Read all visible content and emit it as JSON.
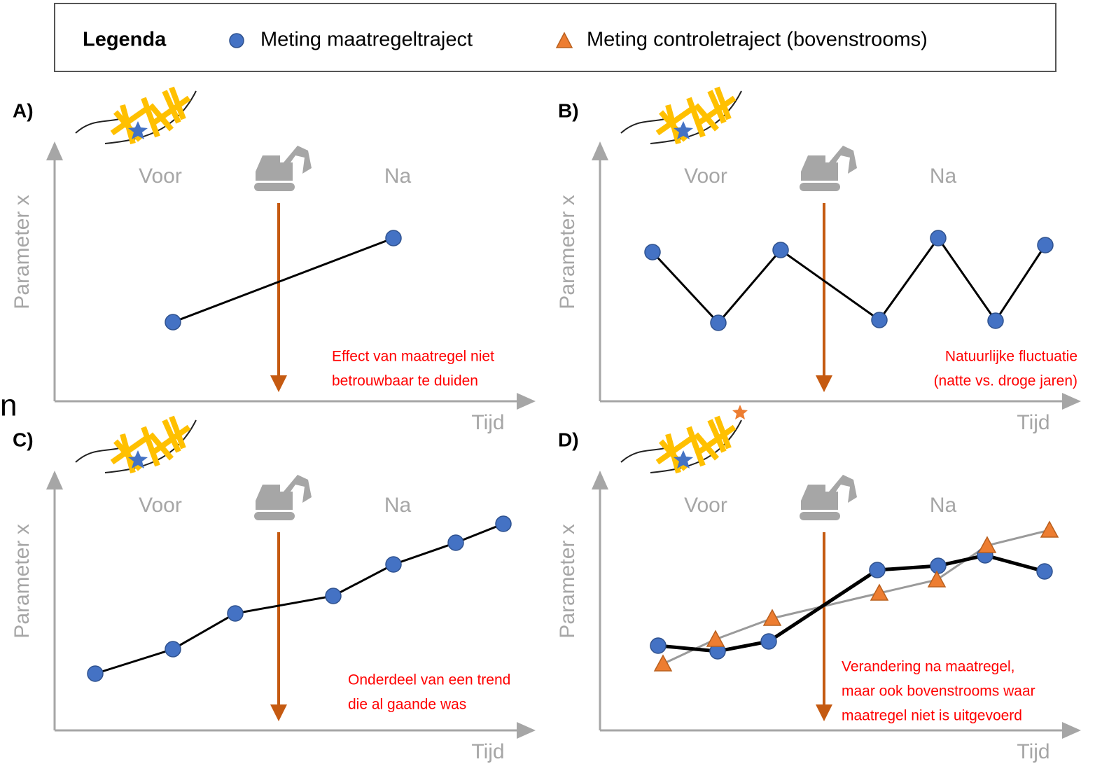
{
  "legend": {
    "title": "Legenda",
    "items": [
      "Meting maatregeltraject",
      "Meting controletraject (bovenstrooms)"
    ]
  },
  "stray_text": "n",
  "panels": [
    {
      "label": "A)",
      "before": "Voor",
      "after": "Na",
      "y_label": "Parameter x",
      "x_label": "Tijd",
      "note": [
        "Effect van maatregel niet",
        "betrouwbaar te duiden"
      ]
    },
    {
      "label": "B)",
      "before": "Voor",
      "after": "Na",
      "y_label": "Parameter x",
      "x_label": "Tijd",
      "note": [
        "Natuurlijke fluctuatie",
        "(natte vs. droge jaren)"
      ]
    },
    {
      "label": "C)",
      "before": "Voor",
      "after": "Na",
      "y_label": "Parameter x",
      "x_label": "Tijd",
      "note": [
        "Onderdeel van een trend",
        "die al gaande was"
      ]
    },
    {
      "label": "D)",
      "before": "Voor",
      "after": "Na",
      "y_label": "Parameter x",
      "x_label": "Tijd",
      "note": [
        "Verandering na maatregel,",
        "maar ook bovenstrooms waar",
        "maatregel niet is uitgevoerd"
      ]
    }
  ]
}
